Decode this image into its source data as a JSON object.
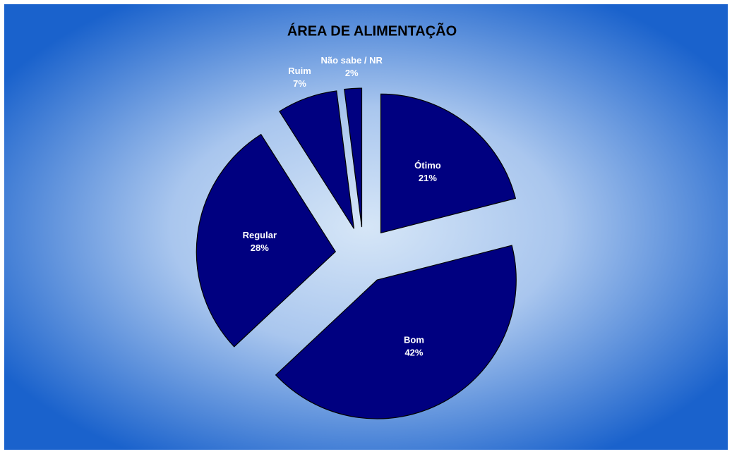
{
  "chart_data": {
    "type": "pie",
    "title": "ÁREA DE ALIMENTAÇÃO",
    "categories": [
      "Ótimo",
      "Bom",
      "Regular",
      "Ruim",
      "Não sabe / NR"
    ],
    "values": [
      21,
      42,
      28,
      7,
      2
    ],
    "value_labels": [
      "21%",
      "42%",
      "28%",
      "7%",
      "2%"
    ],
    "color": "#000080"
  }
}
